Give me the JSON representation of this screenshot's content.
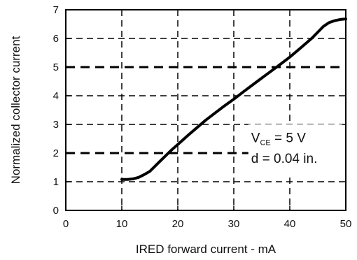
{
  "chart_data": {
    "type": "line",
    "xlabel": "IRED forward current - mA",
    "ylabel": "Normalized collector current",
    "xlim": [
      0,
      50
    ],
    "ylim": [
      0,
      7
    ],
    "x_ticks": [
      "0",
      "10",
      "20",
      "30",
      "40",
      "50"
    ],
    "y_ticks": [
      "0",
      "1",
      "2",
      "3",
      "4",
      "5",
      "6",
      "7"
    ],
    "grid": "dashed",
    "series": [
      {
        "x": [
          10,
          11,
          12,
          13,
          14,
          15,
          17,
          19,
          20,
          22,
          25,
          28,
          30,
          32,
          35,
          38,
          40,
          42,
          44,
          45,
          46,
          47,
          48,
          49,
          50
        ],
        "y": [
          1.08,
          1.08,
          1.1,
          1.15,
          1.25,
          1.36,
          1.75,
          2.13,
          2.3,
          2.65,
          3.15,
          3.6,
          3.88,
          4.18,
          4.62,
          5.05,
          5.35,
          5.68,
          6.02,
          6.22,
          6.42,
          6.55,
          6.62,
          6.66,
          6.68
        ]
      }
    ],
    "annotations": {
      "vce": {
        "main": "V",
        "sub": "CE",
        "rest": " = 5 V"
      },
      "distance": "d = 0.04 in."
    }
  }
}
